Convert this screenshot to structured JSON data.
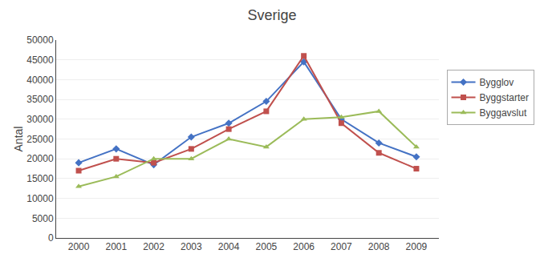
{
  "chart_data": {
    "type": "line",
    "title": "Sverige",
    "ylabel": "Antal",
    "x": [
      2000,
      2001,
      2002,
      2003,
      2004,
      2005,
      2006,
      2007,
      2008,
      2009
    ],
    "series": [
      {
        "name": "Bygglov",
        "color": "#4472C4",
        "marker": "diamond",
        "values": [
          19000,
          22500,
          18500,
          25500,
          29000,
          34500,
          44500,
          30000,
          24000,
          20500
        ]
      },
      {
        "name": "Byggstarter",
        "color": "#C0504D",
        "marker": "square",
        "values": [
          17000,
          20000,
          19000,
          22500,
          27500,
          32000,
          46000,
          29000,
          21500,
          17500
        ]
      },
      {
        "name": "Byggavslut",
        "color": "#9BBB59",
        "marker": "triangle-up",
        "values": [
          13000,
          15500,
          20000,
          20000,
          25000,
          23000,
          30000,
          30500,
          32000,
          23000
        ]
      }
    ],
    "xlim": [
      1999.4,
      2009.6
    ],
    "xticks": [
      2000,
      2001,
      2002,
      2003,
      2004,
      2005,
      2006,
      2007,
      2008,
      2009
    ],
    "ylim": [
      0,
      50000
    ],
    "yticks": [
      0,
      5000,
      10000,
      15000,
      20000,
      25000,
      30000,
      35000,
      40000,
      45000,
      50000
    ],
    "grid": true,
    "legend": "right"
  }
}
